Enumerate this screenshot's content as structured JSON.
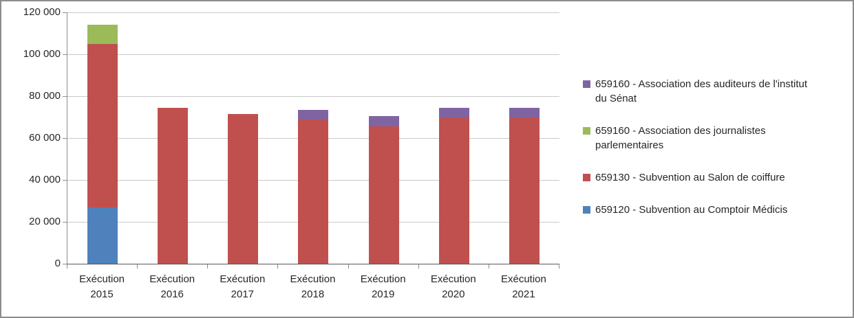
{
  "chart_data": {
    "type": "bar",
    "stacked": true,
    "title": "",
    "xlabel": "",
    "ylabel": "",
    "grid": true,
    "legend_position": "right",
    "ylim": [
      0,
      120000
    ],
    "yticks": [
      {
        "value": 0,
        "label": "0"
      },
      {
        "value": 20000,
        "label": "20 000"
      },
      {
        "value": 40000,
        "label": "40 000"
      },
      {
        "value": 60000,
        "label": "60 000"
      },
      {
        "value": 80000,
        "label": "80 000"
      },
      {
        "value": 100000,
        "label": "100 000"
      },
      {
        "value": 120000,
        "label": "120 000"
      }
    ],
    "categories": [
      "Exécution\n2015",
      "Exécution\n2016",
      "Exécution\n2017",
      "Exécution\n2018",
      "Exécution\n2019",
      "Exécution\n2020",
      "Exécution\n2021"
    ],
    "series": [
      {
        "name": "659120 - Subvention au Comptoir Médicis",
        "color": "#4F81BD",
        "values": [
          27000,
          0,
          0,
          0,
          0,
          0,
          0
        ]
      },
      {
        "name": "659130 - Subvention au Salon de coiffure",
        "color": "#C0504D",
        "values": [
          78000,
          74500,
          71500,
          69000,
          65500,
          70000,
          70000
        ]
      },
      {
        "name": "659160 - Association des journalistes parlementaires",
        "color": "#9BBB59",
        "values": [
          9000,
          0,
          0,
          0,
          0,
          0,
          0
        ]
      },
      {
        "name": "659160 - Association des auditeurs de l'institut du Sénat",
        "color": "#8064A2",
        "values": [
          0,
          0,
          0,
          4500,
          5000,
          4500,
          4500
        ]
      }
    ],
    "legend_order": [
      3,
      2,
      1,
      0
    ]
  }
}
